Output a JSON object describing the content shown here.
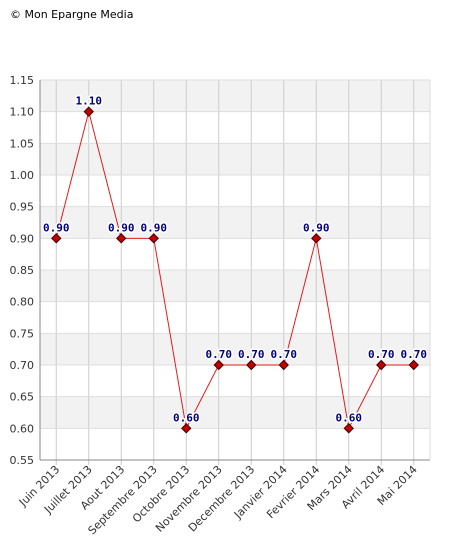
{
  "copyright": "© Mon Epargne Media",
  "chart_data": {
    "type": "line",
    "title": "",
    "xlabel": "",
    "ylabel": "",
    "ylim": [
      0.55,
      1.15
    ],
    "yticks": [
      "0.55",
      "0.60",
      "0.65",
      "0.70",
      "0.75",
      "0.80",
      "0.85",
      "0.90",
      "0.95",
      "1.00",
      "1.05",
      "1.10",
      "1.15"
    ],
    "grid": true,
    "categories": [
      "Juin 2013",
      "Juillet 2013",
      "Aout 2013",
      "Septembre 2013",
      "Octobre 2013",
      "Novembre 2013",
      "Decembre 2013",
      "Janvier 2014",
      "Fevrier 2014",
      "Mars 2014",
      "Avril 2014",
      "Mai 2014"
    ],
    "series": [
      {
        "values": [
          0.9,
          1.1,
          0.9,
          0.9,
          0.6,
          0.7,
          0.7,
          0.7,
          0.9,
          0.6,
          0.7,
          0.7
        ],
        "labels": [
          "0.90",
          "1.10",
          "0.90",
          "0.90",
          "0.60",
          "0.70",
          "0.70",
          "0.70",
          "0.90",
          "0.60",
          "0.70",
          "0.70"
        ]
      }
    ],
    "colors": {
      "line": "#e31b1b",
      "marker": "#c00000",
      "label": "#000080",
      "band": "#f2f2f2",
      "grid": "#dddddd",
      "axis": "#888888",
      "tick_text": "#333333"
    }
  }
}
